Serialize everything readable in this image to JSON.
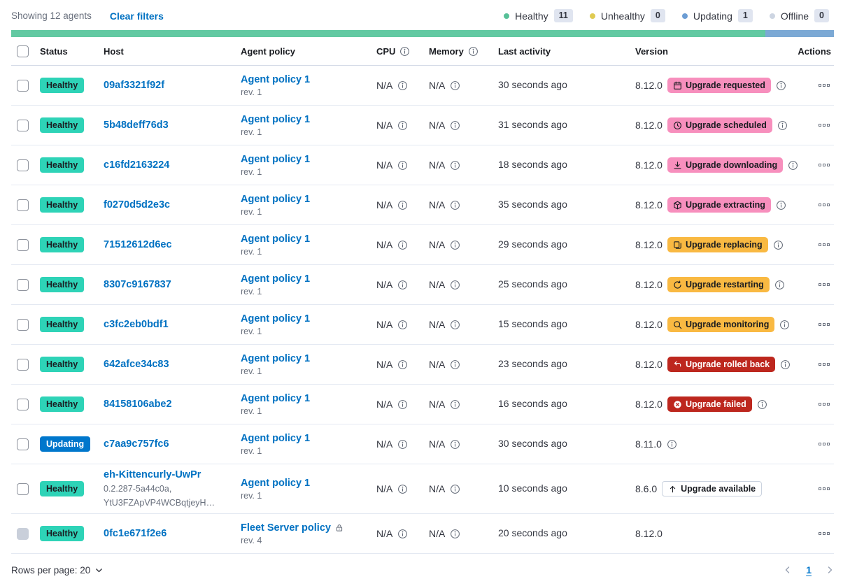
{
  "toolbar": {
    "showing": "Showing 12 agents",
    "clear_filters": "Clear filters"
  },
  "legend": {
    "items": [
      {
        "label": "Healthy",
        "count": "11",
        "color": "#57C098"
      },
      {
        "label": "Unhealthy",
        "count": "0",
        "color": "#E0CB52"
      },
      {
        "label": "Updating",
        "count": "1",
        "color": "#6C9DD4"
      },
      {
        "label": "Offline",
        "count": "0",
        "color": "#CDD5E2"
      }
    ]
  },
  "status_bar": {
    "segments": [
      {
        "name": "healthy",
        "color": "#62C9A2",
        "fraction": 0.9167
      },
      {
        "name": "updating",
        "color": "#7CA9D5",
        "fraction": 0.0833
      }
    ]
  },
  "colors": {
    "link": "#0071C2",
    "status": {
      "healthy": {
        "bg": "#2ED3B7",
        "fg": "#1A1C21"
      },
      "updating": {
        "bg": "#0077CC",
        "fg": "#FFFFFF"
      }
    },
    "badge": {
      "accent": {
        "bg": "#F78FBD",
        "fg": "#1A1C21"
      },
      "warning": {
        "bg": "#F9B942",
        "fg": "#1A1C21"
      },
      "danger": {
        "bg": "#BD271E",
        "fg": "#FFFFFF"
      },
      "hollow": {
        "bg": "#FFFFFF",
        "fg": "#1A1C21"
      }
    }
  },
  "table": {
    "headers": [
      {
        "label": "",
        "type": "checkbox"
      },
      {
        "label": "Status"
      },
      {
        "label": "Host"
      },
      {
        "label": "Agent policy"
      },
      {
        "label": "CPU",
        "info": true
      },
      {
        "label": "Memory",
        "info": true
      },
      {
        "label": "Last activity"
      },
      {
        "label": "Version"
      },
      {
        "label": "Actions",
        "align": "right"
      }
    ],
    "rows": [
      {
        "status": {
          "label": "Healthy",
          "type": "healthy"
        },
        "host": {
          "name": "09af3321f92f",
          "sub": []
        },
        "policy": {
          "name": "Agent policy 1",
          "rev": "rev. 1",
          "lock": false
        },
        "cpu": "N/A",
        "memory": "N/A",
        "last_activity": "30 seconds ago",
        "version": "8.12.0",
        "upgrade": {
          "label": "Upgrade requested",
          "type": "accent",
          "icon": "calendar-icon"
        },
        "badge_info": true,
        "version_info": false
      },
      {
        "status": {
          "label": "Healthy",
          "type": "healthy"
        },
        "host": {
          "name": "5b48deff76d3",
          "sub": []
        },
        "policy": {
          "name": "Agent policy 1",
          "rev": "rev. 1",
          "lock": false
        },
        "cpu": "N/A",
        "memory": "N/A",
        "last_activity": "31 seconds ago",
        "version": "8.12.0",
        "upgrade": {
          "label": "Upgrade scheduled",
          "type": "accent",
          "icon": "clock-icon"
        },
        "badge_info": true,
        "version_info": false
      },
      {
        "status": {
          "label": "Healthy",
          "type": "healthy"
        },
        "host": {
          "name": "c16fd2163224",
          "sub": []
        },
        "policy": {
          "name": "Agent policy 1",
          "rev": "rev. 1",
          "lock": false
        },
        "cpu": "N/A",
        "memory": "N/A",
        "last_activity": "18 seconds ago",
        "version": "8.12.0",
        "upgrade": {
          "label": "Upgrade downloading",
          "type": "accent",
          "icon": "download-icon"
        },
        "badge_info": true,
        "version_info": false
      },
      {
        "status": {
          "label": "Healthy",
          "type": "healthy"
        },
        "host": {
          "name": "f0270d5d2e3c",
          "sub": []
        },
        "policy": {
          "name": "Agent policy 1",
          "rev": "rev. 1",
          "lock": false
        },
        "cpu": "N/A",
        "memory": "N/A",
        "last_activity": "35 seconds ago",
        "version": "8.12.0",
        "upgrade": {
          "label": "Upgrade extracting",
          "type": "accent",
          "icon": "package-icon"
        },
        "badge_info": true,
        "version_info": false
      },
      {
        "status": {
          "label": "Healthy",
          "type": "healthy"
        },
        "host": {
          "name": "71512612d6ec",
          "sub": []
        },
        "policy": {
          "name": "Agent policy 1",
          "rev": "rev. 1",
          "lock": false
        },
        "cpu": "N/A",
        "memory": "N/A",
        "last_activity": "29 seconds ago",
        "version": "8.12.0",
        "upgrade": {
          "label": "Upgrade replacing",
          "type": "warning",
          "icon": "copy-icon"
        },
        "badge_info": true,
        "version_info": false
      },
      {
        "status": {
          "label": "Healthy",
          "type": "healthy"
        },
        "host": {
          "name": "8307c9167837",
          "sub": []
        },
        "policy": {
          "name": "Agent policy 1",
          "rev": "rev. 1",
          "lock": false
        },
        "cpu": "N/A",
        "memory": "N/A",
        "last_activity": "25 seconds ago",
        "version": "8.12.0",
        "upgrade": {
          "label": "Upgrade restarting",
          "type": "warning",
          "icon": "refresh-icon"
        },
        "badge_info": true,
        "version_info": false
      },
      {
        "status": {
          "label": "Healthy",
          "type": "healthy"
        },
        "host": {
          "name": "c3fc2eb0bdf1",
          "sub": []
        },
        "policy": {
          "name": "Agent policy 1",
          "rev": "rev. 1",
          "lock": false
        },
        "cpu": "N/A",
        "memory": "N/A",
        "last_activity": "15 seconds ago",
        "version": "8.12.0",
        "upgrade": {
          "label": "Upgrade monitoring",
          "type": "warning",
          "icon": "inspect-icon"
        },
        "badge_info": true,
        "version_info": false
      },
      {
        "status": {
          "label": "Healthy",
          "type": "healthy"
        },
        "host": {
          "name": "642afce34c83",
          "sub": []
        },
        "policy": {
          "name": "Agent policy 1",
          "rev": "rev. 1",
          "lock": false
        },
        "cpu": "N/A",
        "memory": "N/A",
        "last_activity": "23 seconds ago",
        "version": "8.12.0",
        "upgrade": {
          "label": "Upgrade rolled back",
          "type": "danger",
          "icon": "return-icon"
        },
        "badge_info": true,
        "version_info": false
      },
      {
        "status": {
          "label": "Healthy",
          "type": "healthy"
        },
        "host": {
          "name": "84158106abe2",
          "sub": []
        },
        "policy": {
          "name": "Agent policy 1",
          "rev": "rev. 1",
          "lock": false
        },
        "cpu": "N/A",
        "memory": "N/A",
        "last_activity": "16 seconds ago",
        "version": "8.12.0",
        "upgrade": {
          "label": "Upgrade failed",
          "type": "danger",
          "icon": "cross-circle-icon"
        },
        "badge_info": true,
        "version_info": false
      },
      {
        "status": {
          "label": "Updating",
          "type": "updating"
        },
        "host": {
          "name": "c7aa9c757fc6",
          "sub": []
        },
        "policy": {
          "name": "Agent policy 1",
          "rev": "rev. 1",
          "lock": false
        },
        "cpu": "N/A",
        "memory": "N/A",
        "last_activity": "30 seconds ago",
        "version": "8.11.0",
        "upgrade": null,
        "badge_info": false,
        "version_info": true
      },
      {
        "status": {
          "label": "Healthy",
          "type": "healthy"
        },
        "host": {
          "name": "eh-Kittencurly-UwPr",
          "sub": [
            "0.2.287-5a44c0a,",
            "YtU3FZApVP4WCBqtjeyH…"
          ]
        },
        "policy": {
          "name": "Agent policy 1",
          "rev": "rev. 1",
          "lock": false
        },
        "cpu": "N/A",
        "memory": "N/A",
        "last_activity": "10 seconds ago",
        "version": "8.6.0",
        "upgrade": {
          "label": "Upgrade available",
          "type": "hollow",
          "icon": "arrow-up-icon"
        },
        "badge_info": false,
        "version_info": false
      },
      {
        "status": {
          "label": "Healthy",
          "type": "healthy"
        },
        "host": {
          "name": "0fc1e671f2e6",
          "sub": []
        },
        "policy": {
          "name": "Fleet Server policy",
          "rev": "rev. 4",
          "lock": true
        },
        "cpu": "N/A",
        "memory": "N/A",
        "last_activity": "20 seconds ago",
        "version": "8.12.0",
        "upgrade": null,
        "badge_info": false,
        "version_info": false,
        "checkbox_disabled": true
      }
    ]
  },
  "footer": {
    "rows_per_page": "Rows per page: 20",
    "page": "1"
  }
}
